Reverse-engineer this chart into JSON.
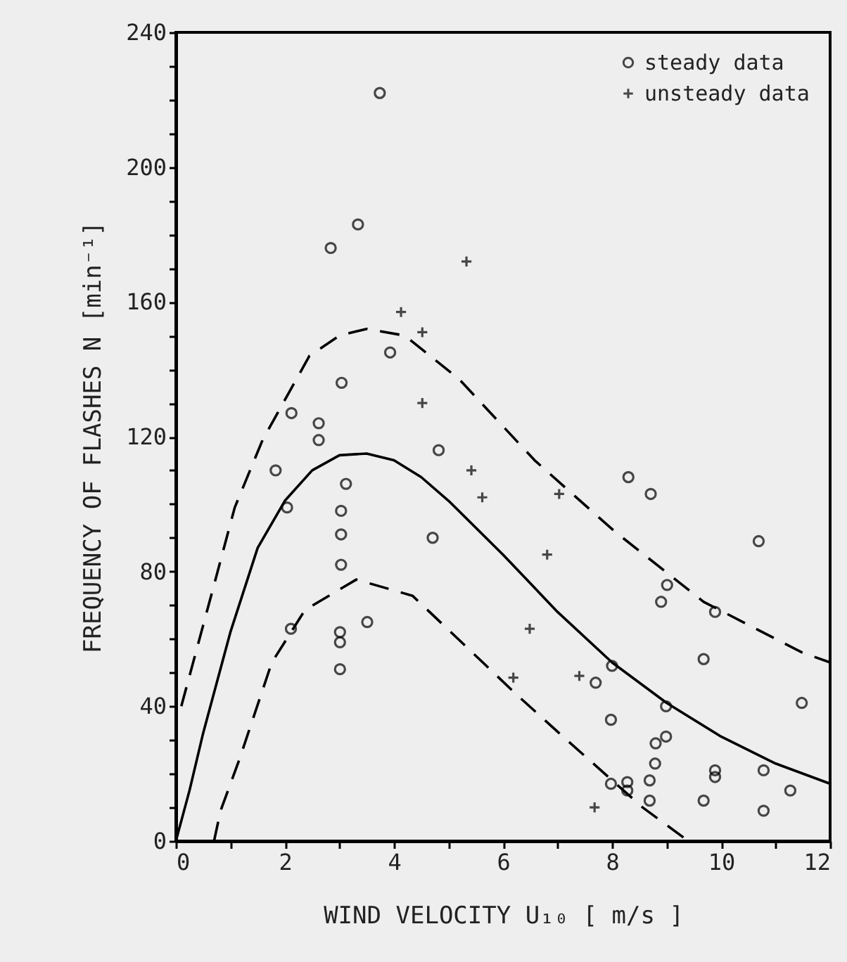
{
  "chart_data": {
    "type": "scatter",
    "xlabel": "WIND VELOCITY  U₁₀ [ m/s ]",
    "ylabel": "FREQUENCY OF FLASHES  N [min⁻¹]",
    "xlim": [
      0,
      12
    ],
    "xticks": [
      0,
      {
        "value": 1,
        "label": null
      },
      2,
      {
        "value": 3,
        "label": null
      },
      4,
      {
        "value": 5,
        "label": null
      },
      6,
      {
        "value": 7,
        "label": null
      },
      8,
      {
        "value": 9,
        "label": null
      },
      10,
      {
        "value": 11,
        "label": null
      },
      12
    ],
    "ylim": [
      0,
      240
    ],
    "yticks": [
      0,
      {
        "value": 10,
        "label": null
      },
      {
        "value": 20,
        "label": null
      },
      {
        "value": 30,
        "label": null
      },
      40,
      {
        "value": 50,
        "label": null
      },
      {
        "value": 60,
        "label": null
      },
      {
        "value": 70,
        "label": null
      },
      80,
      {
        "value": 90,
        "label": null
      },
      {
        "value": 100,
        "label": null
      },
      {
        "value": 110,
        "label": null
      },
      120,
      {
        "value": 130,
        "label": null
      },
      {
        "value": 140,
        "label": null
      },
      {
        "value": 150,
        "label": null
      },
      160,
      {
        "value": 170,
        "label": null
      },
      {
        "value": 180,
        "label": null
      },
      {
        "value": 190,
        "label": null
      },
      200,
      {
        "value": 210,
        "label": null
      },
      {
        "value": 220,
        "label": null
      },
      {
        "value": 230,
        "label": null
      },
      240
    ],
    "legend": "top right",
    "grid": false,
    "series": [
      {
        "name": "steady data",
        "type": "scatter",
        "marker": "circle",
        "color": "#000000",
        "x": [
          3.74,
          3.34,
          2.84,
          3.93,
          3.04,
          2.12,
          2.62,
          2.62,
          4.82,
          1.83,
          3.12,
          2.04,
          3.03,
          3.03,
          4.71,
          3.03,
          2.11,
          3.51,
          3.01,
          3.01,
          3.01,
          8.3,
          8.71,
          10.69,
          9.01,
          8.9,
          9.89,
          9.68,
          8.0,
          7.7,
          11.48,
          8.99,
          7.98,
          8.8,
          8.99,
          8.79,
          9.89,
          9.89,
          10.78,
          11.27,
          7.98,
          8.28,
          8.28,
          8.69,
          8.69,
          9.68,
          10.78
        ],
        "values": [
          222,
          183,
          176,
          145,
          136,
          127,
          124,
          119,
          116,
          110,
          106,
          99,
          98,
          91,
          90,
          82,
          63,
          65,
          62,
          59,
          51,
          108,
          103,
          89,
          76,
          71,
          68,
          54,
          52,
          47,
          41,
          40,
          36,
          29,
          31,
          23,
          21,
          19,
          21,
          15,
          17,
          17.5,
          15,
          18,
          12,
          12,
          9
        ]
      },
      {
        "name": "unsteady data",
        "type": "scatter",
        "marker": "cross",
        "color": "#000000",
        "x": [
          5.33,
          4.13,
          4.52,
          4.52,
          5.42,
          5.62,
          7.03,
          6.81,
          6.49,
          6.19,
          7.4,
          7.68
        ],
        "values": [
          172,
          157,
          151,
          130,
          110,
          102,
          103,
          85,
          63,
          48.5,
          49,
          10
        ]
      },
      {
        "type": "line",
        "line_style": "solid",
        "color": "#000000",
        "x": [
          0,
          0.25,
          0.5,
          1,
          1.5,
          2,
          2.5,
          3,
          3.5,
          4,
          4.5,
          5,
          6,
          7,
          8,
          9,
          10,
          11,
          12
        ],
        "values": [
          0,
          15,
          32,
          62,
          87,
          101,
          110,
          114.5,
          115,
          113,
          108,
          101,
          85,
          68,
          53,
          41,
          31,
          23,
          17
        ]
      },
      {
        "type": "line",
        "line_style": "dashed",
        "color": "#000000",
        "x": [
          0.1,
          0.65,
          1.08,
          1.59,
          2.45,
          3.0,
          3.5,
          4.2,
          5.2,
          6.58,
          8.04,
          9.68,
          11.48,
          12
        ],
        "values": [
          40,
          73,
          99,
          119,
          144,
          150,
          152,
          150,
          137,
          113,
          92,
          71,
          56,
          53
        ]
      },
      {
        "type": "line",
        "line_style": "dashed",
        "color": "#000000",
        "x": [
          0.7,
          0.82,
          1.16,
          1.76,
          2.37,
          3.31,
          4.34,
          5.63,
          6.24,
          7.1,
          8.56,
          9.4
        ],
        "values": [
          0,
          9,
          24,
          53,
          68.6,
          77.6,
          72.8,
          53,
          43.6,
          31,
          10,
          0
        ]
      }
    ]
  }
}
